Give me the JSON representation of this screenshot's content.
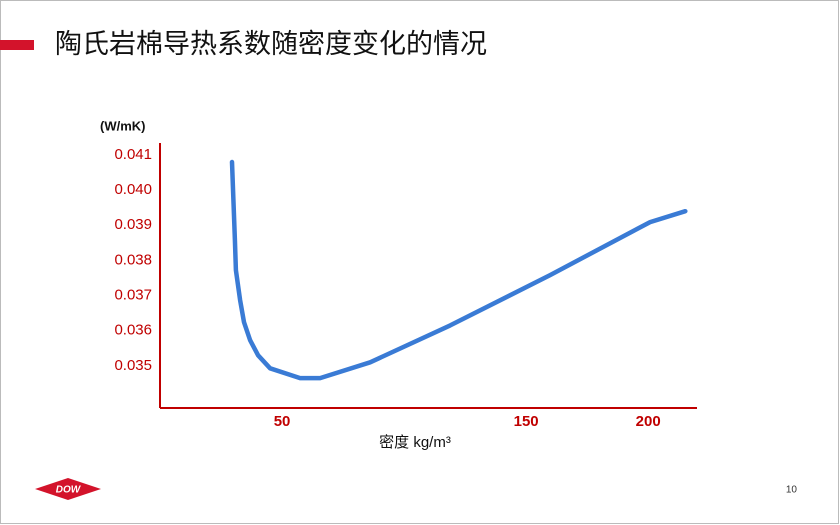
{
  "chart_data": {
    "type": "line",
    "title": "陶氏岩棉导热系数随密度变化的情况",
    "y_label": "(W/mK)",
    "x_label": "密度 kg/m³",
    "page_number": "10",
    "logo": "DOW",
    "xlim": [
      0,
      220
    ],
    "ylim": [
      0.0338,
      0.04134
    ],
    "xticks": [
      50,
      150,
      200
    ],
    "yticks": [
      0.035,
      0.036,
      0.037,
      0.038,
      0.039,
      {
        "value": 0.04,
        "label": "0.040"
      },
      0.041
    ],
    "grid": false,
    "series": [
      {
        "color": "#3a7bd5",
        "x": [
          29.5,
          30.7,
          31.1,
          32.8,
          34.4,
          36.9,
          40.2,
          45.1,
          57.4,
          65.6,
          86.1,
          118.9,
          159.8,
          200.8,
          215.2
        ],
        "values": [
          0.0408,
          0.03858,
          0.03772,
          0.03687,
          0.03624,
          0.03573,
          0.0353,
          0.03493,
          0.03465,
          0.03465,
          0.0351,
          0.03615,
          0.03758,
          0.03909,
          0.0394
        ]
      }
    ]
  }
}
